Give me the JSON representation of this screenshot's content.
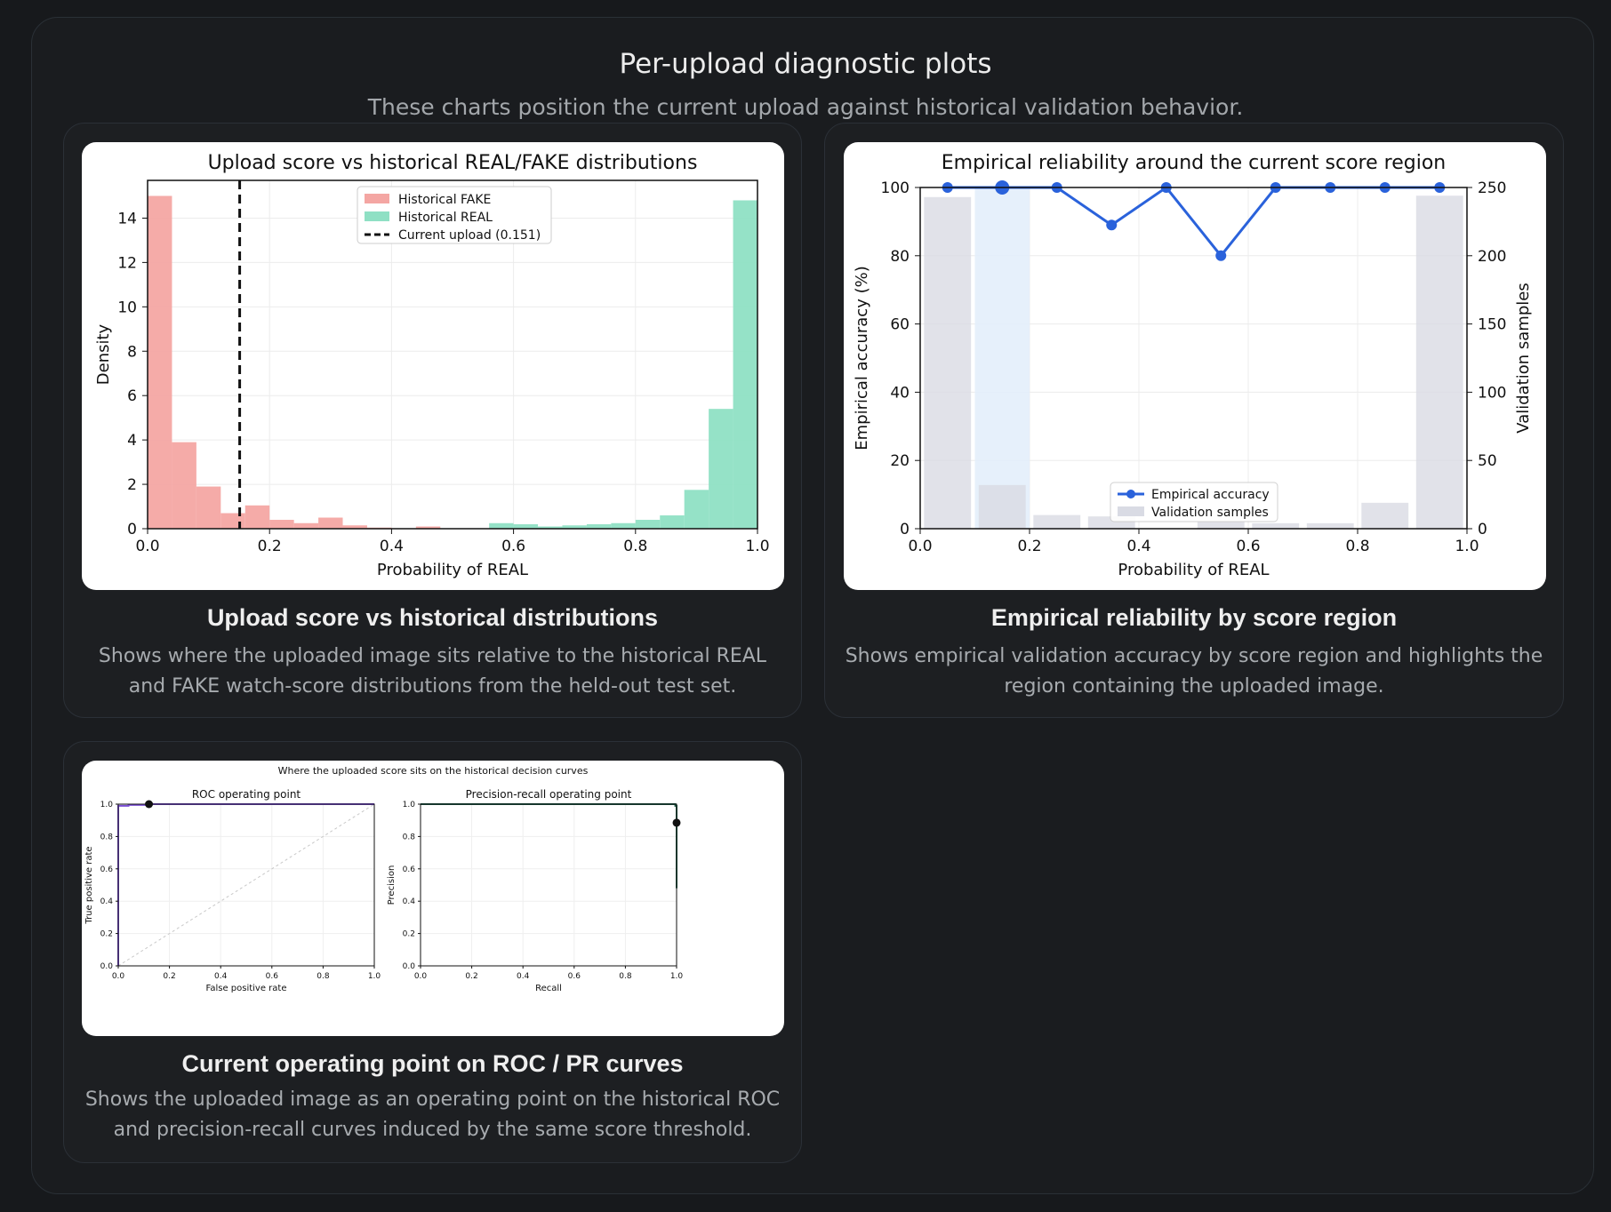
{
  "header": {
    "title": "Per-upload diagnostic plots",
    "subtitle": "These charts position the current upload against historical validation behavior."
  },
  "cards": [
    {
      "title": "Upload score vs historical distributions",
      "description": "Shows where the uploaded image sits relative to the historical REAL and FAKE watch-score distributions from the held-out test set."
    },
    {
      "title": "Empirical reliability by score region",
      "description": "Shows empirical validation accuracy by score region and highlights the region containing the uploaded image."
    },
    {
      "title": "Current operating point on ROC / PR curves",
      "description": "Shows the uploaded image as an operating point on the historical ROC and precision-recall curves induced by the same score threshold."
    }
  ],
  "chart_data": [
    {
      "type": "bar",
      "title": "Upload score vs historical REAL/FAKE distributions",
      "xlabel": "Probability of REAL",
      "ylabel": "Density",
      "xlim": [
        0,
        1
      ],
      "ylim": [
        0,
        15.7
      ],
      "xticks": [
        "0.0",
        "0.2",
        "0.4",
        "0.6",
        "0.8",
        "1.0"
      ],
      "yticks": [
        "0",
        "2",
        "4",
        "6",
        "8",
        "10",
        "12",
        "14"
      ],
      "bin_width": 0.04,
      "bin_starts": [
        0.0,
        0.04,
        0.08,
        0.12,
        0.16,
        0.2,
        0.24,
        0.28,
        0.32,
        0.36,
        0.4,
        0.44,
        0.48,
        0.52,
        0.56,
        0.6,
        0.64,
        0.68,
        0.72,
        0.76,
        0.8,
        0.84,
        0.88,
        0.92,
        0.96
      ],
      "series": [
        {
          "name": "Historical FAKE",
          "color": "#f4a6a3",
          "values": [
            15.0,
            3.9,
            1.9,
            0.7,
            1.05,
            0.4,
            0.25,
            0.5,
            0.15,
            0.05,
            0.0,
            0.1,
            0.0,
            0.0,
            0.0,
            0.0,
            0.0,
            0.0,
            0.0,
            0.0,
            0.0,
            0.0,
            0.0,
            0.0,
            0.0
          ]
        },
        {
          "name": "Historical REAL",
          "color": "#8fe0c4",
          "values": [
            0.0,
            0.0,
            0.0,
            0.0,
            0.0,
            0.0,
            0.0,
            0.0,
            0.0,
            0.0,
            0.0,
            0.0,
            0.0,
            0.0,
            0.25,
            0.2,
            0.1,
            0.15,
            0.2,
            0.25,
            0.4,
            0.6,
            1.75,
            5.4,
            14.8
          ]
        }
      ],
      "marker": {
        "name": "Current upload (0.151)",
        "x": 0.151,
        "style": "dashed",
        "color": "#111111"
      },
      "legend": "top-center",
      "grid": true
    },
    {
      "type": "line",
      "title": "Empirical reliability around the current score region",
      "xlabel": "Probability of REAL",
      "ylabel": "Empirical accuracy (%)",
      "y2label": "Validation samples",
      "xlim": [
        0,
        1
      ],
      "ylim": [
        0,
        100
      ],
      "y2lim": [
        0,
        250
      ],
      "xticks": [
        "0.0",
        "0.2",
        "0.4",
        "0.6",
        "0.8",
        "1.0"
      ],
      "yticks": [
        "0",
        "20",
        "40",
        "60",
        "80",
        "100"
      ],
      "y2ticks": [
        "0",
        "50",
        "100",
        "150",
        "200",
        "250"
      ],
      "x": [
        0.05,
        0.15,
        0.25,
        0.35,
        0.45,
        0.55,
        0.65,
        0.75,
        0.85,
        0.95
      ],
      "series": [
        {
          "name": "Empirical accuracy",
          "color": "#2a62db",
          "values": [
            100,
            100,
            100,
            89,
            100,
            80,
            100,
            100,
            100,
            100
          ]
        },
        {
          "name": "Validation samples",
          "color": "#d9dbe4",
          "values": [
            243,
            32,
            10,
            9,
            0,
            5,
            4,
            4,
            19,
            244
          ]
        }
      ],
      "highlight_region": [
        0.1,
        0.2
      ],
      "legend": "bottom-center",
      "grid": true
    },
    {
      "type": "line",
      "title": "Where the uploaded score sits on the historical decision curves",
      "subplots": [
        {
          "title": "ROC operating point",
          "xlabel": "False positive rate",
          "ylabel": "True positive rate",
          "xlim": [
            0,
            1
          ],
          "ylim": [
            0,
            1
          ],
          "ticks": [
            "0.0",
            "0.2",
            "0.4",
            "0.6",
            "0.8",
            "1.0"
          ],
          "curve_color": "#7b4fd6",
          "curve_x": [
            0.0,
            0.0,
            0.04,
            0.04,
            0.12,
            0.12,
            0.2,
            1.0
          ],
          "curve_y": [
            0.0,
            0.99,
            0.99,
            0.995,
            0.995,
            1.0,
            1.0,
            1.0
          ],
          "diagonal": true,
          "operating_point": {
            "x": 0.12,
            "y": 1.0
          }
        },
        {
          "title": "Precision-recall operating point",
          "xlabel": "Recall",
          "ylabel": "Precision",
          "xlim": [
            0,
            1
          ],
          "ylim": [
            0,
            1
          ],
          "ticks": [
            "0.0",
            "0.2",
            "0.4",
            "0.6",
            "0.8",
            "1.0"
          ],
          "curve_color": "#1c5b46",
          "curve_x": [
            0.0,
            0.995,
            0.995,
            1.0,
            1.0
          ],
          "curve_y": [
            1.0,
            1.0,
            0.99,
            0.99,
            0.48
          ],
          "operating_point": {
            "x": 1.0,
            "y": 0.885
          }
        }
      ]
    }
  ]
}
